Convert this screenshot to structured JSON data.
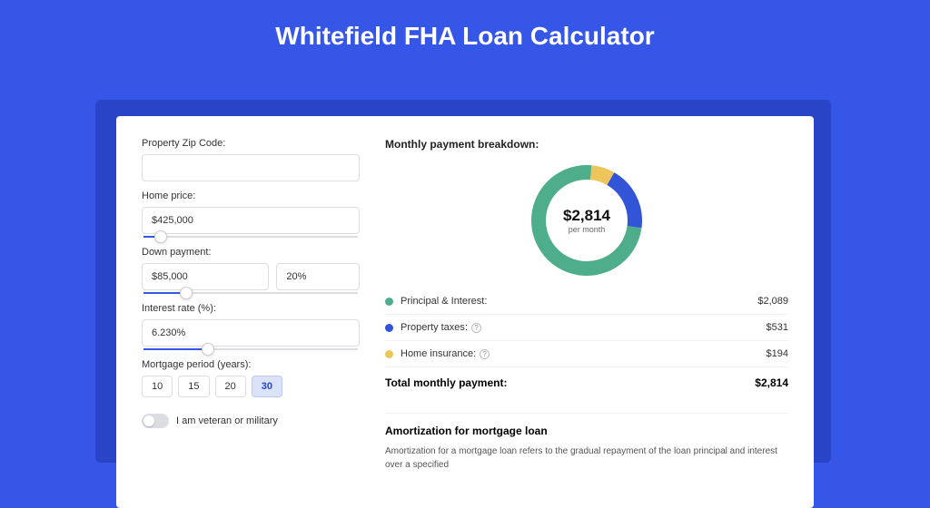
{
  "title": "Whitefield FHA Loan Calculator",
  "colors": {
    "page_bg": "#3556e6",
    "shadow": "#2a44c7",
    "card_bg": "#ffffff",
    "border": "#dcdde2",
    "slider_fill": "#3556e6",
    "period_active_bg": "#dbe3fb",
    "period_active_border": "#b9c8f5"
  },
  "form": {
    "zip": {
      "label": "Property Zip Code:",
      "value": ""
    },
    "home_price": {
      "label": "Home price:",
      "value": "$425,000",
      "slider_pct": 8
    },
    "down_payment": {
      "label": "Down payment:",
      "amount": "$85,000",
      "percent": "20%",
      "slider_pct": 20
    },
    "interest": {
      "label": "Interest rate (%):",
      "value": "6.230%",
      "slider_pct": 30
    },
    "period": {
      "label": "Mortgage period (years):",
      "options": [
        "10",
        "15",
        "20",
        "30"
      ],
      "active_index": 3
    },
    "veteran": {
      "label": "I am veteran or military",
      "on": false
    }
  },
  "breakdown": {
    "title": "Monthly payment breakdown:",
    "center_amount": "$2,814",
    "center_sub": "per month",
    "items": [
      {
        "label": "Principal & Interest:",
        "value": "$2,089",
        "color": "#4eae8b",
        "info": false,
        "share": 0.742
      },
      {
        "label": "Property taxes:",
        "value": "$531",
        "color": "#3255d8",
        "info": true,
        "share": 0.189
      },
      {
        "label": "Home insurance:",
        "value": "$194",
        "color": "#eec55a",
        "info": true,
        "share": 0.069
      }
    ],
    "total_label": "Total monthly payment:",
    "total_value": "$2,814",
    "donut": {
      "stroke_width": 16,
      "bg": "#ffffff"
    }
  },
  "amortization": {
    "title": "Amortization for mortgage loan",
    "body": "Amortization for a mortgage loan refers to the gradual repayment of the loan principal and interest over a specified"
  }
}
